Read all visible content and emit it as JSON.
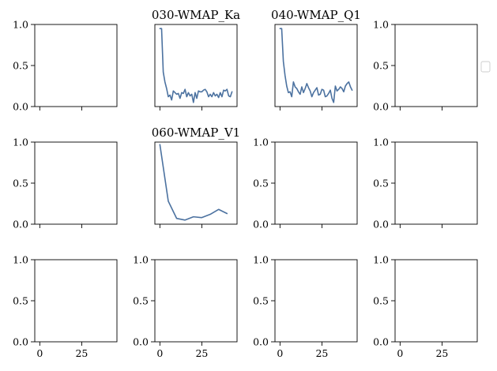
{
  "chart_data": {
    "type": "line",
    "layout": {
      "rows": 3,
      "cols": 4
    },
    "legend": {
      "placement": "right",
      "entries": []
    },
    "colors": {
      "series": "#4c72a0",
      "axes": "#000000",
      "background": "#ffffff"
    },
    "panels": [
      {
        "row": 0,
        "col": 0,
        "title": "",
        "xlim": [
          -3,
          46
        ],
        "ylim": [
          0,
          1
        ],
        "show_y_ticks": true,
        "show_x_tick_labels": false,
        "series": []
      },
      {
        "row": 0,
        "col": 1,
        "title": "030-WMAP_Ka",
        "xlim": [
          -3,
          46
        ],
        "ylim": [
          0,
          1
        ],
        "show_y_ticks": false,
        "show_x_tick_labels": false,
        "series": [
          {
            "x": [
              0,
              1,
              2,
              3,
              4,
              5,
              6,
              7,
              8,
              9,
              10,
              11,
              12,
              13,
              14,
              15,
              16,
              17,
              18,
              19,
              20,
              21,
              22,
              23,
              24,
              25,
              26,
              27,
              28,
              29,
              30,
              31,
              32,
              33,
              34,
              35,
              36,
              37,
              38,
              39,
              40,
              41,
              42,
              43
            ],
            "y": [
              0.95,
              0.95,
              0.42,
              0.3,
              0.22,
              0.12,
              0.14,
              0.08,
              0.19,
              0.17,
              0.15,
              0.16,
              0.1,
              0.17,
              0.16,
              0.21,
              0.12,
              0.17,
              0.13,
              0.15,
              0.05,
              0.17,
              0.1,
              0.19,
              0.18,
              0.18,
              0.2,
              0.21,
              0.18,
              0.12,
              0.15,
              0.12,
              0.17,
              0.13,
              0.15,
              0.11,
              0.17,
              0.12,
              0.2,
              0.19,
              0.21,
              0.13,
              0.12,
              0.18
            ]
          }
        ]
      },
      {
        "row": 0,
        "col": 2,
        "title": "040-WMAP_Q1",
        "xlim": [
          -3,
          46
        ],
        "ylim": [
          0,
          1
        ],
        "show_y_ticks": false,
        "show_x_tick_labels": false,
        "series": [
          {
            "x": [
              0,
              1,
              2,
              3,
              4,
              5,
              6,
              7,
              8,
              9,
              10,
              11,
              12,
              13,
              14,
              15,
              16,
              17,
              18,
              19,
              20,
              21,
              22,
              23,
              24,
              25,
              26,
              27,
              28,
              29,
              30,
              31,
              32,
              33,
              34,
              35,
              36,
              37,
              38,
              39,
              40,
              41,
              42,
              43
            ],
            "y": [
              0.95,
              0.95,
              0.55,
              0.38,
              0.25,
              0.17,
              0.18,
              0.12,
              0.3,
              0.24,
              0.22,
              0.18,
              0.15,
              0.24,
              0.17,
              0.22,
              0.28,
              0.23,
              0.19,
              0.12,
              0.17,
              0.2,
              0.23,
              0.14,
              0.15,
              0.21,
              0.2,
              0.12,
              0.13,
              0.16,
              0.2,
              0.1,
              0.05,
              0.25,
              0.19,
              0.21,
              0.24,
              0.22,
              0.18,
              0.25,
              0.28,
              0.3,
              0.24,
              0.2
            ]
          }
        ]
      },
      {
        "row": 0,
        "col": 3,
        "title": "",
        "xlim": [
          -3,
          46
        ],
        "ylim": [
          0,
          1
        ],
        "show_y_ticks": true,
        "show_x_tick_labels": false,
        "series": []
      },
      {
        "row": 1,
        "col": 0,
        "title": "",
        "xlim": [
          -3,
          46
        ],
        "ylim": [
          0,
          1
        ],
        "show_y_ticks": true,
        "show_x_tick_labels": false,
        "series": []
      },
      {
        "row": 1,
        "col": 1,
        "title": "060-WMAP_V1",
        "xlim": [
          -3,
          46
        ],
        "ylim": [
          0,
          1
        ],
        "show_y_ticks": false,
        "show_x_tick_labels": false,
        "series": [
          {
            "x": [
              0,
              5,
              10,
              15,
              20,
              25,
              30,
              35,
              40
            ],
            "y": [
              0.97,
              0.28,
              0.07,
              0.05,
              0.09,
              0.08,
              0.12,
              0.18,
              0.13
            ]
          }
        ]
      },
      {
        "row": 1,
        "col": 2,
        "title": "",
        "xlim": [
          -3,
          46
        ],
        "ylim": [
          0,
          1
        ],
        "show_y_ticks": true,
        "show_x_tick_labels": false,
        "series": []
      },
      {
        "row": 1,
        "col": 3,
        "title": "",
        "xlim": [
          -3,
          46
        ],
        "ylim": [
          0,
          1
        ],
        "show_y_ticks": true,
        "show_x_tick_labels": false,
        "series": []
      },
      {
        "row": 2,
        "col": 0,
        "title": "",
        "xlim": [
          -3,
          46
        ],
        "ylim": [
          0,
          1
        ],
        "show_y_ticks": true,
        "show_x_tick_labels": true,
        "series": []
      },
      {
        "row": 2,
        "col": 1,
        "title": "",
        "xlim": [
          -3,
          46
        ],
        "ylim": [
          0,
          1
        ],
        "show_y_ticks": true,
        "show_x_tick_labels": true,
        "series": []
      },
      {
        "row": 2,
        "col": 2,
        "title": "",
        "xlim": [
          -3,
          46
        ],
        "ylim": [
          0,
          1
        ],
        "show_y_ticks": true,
        "show_x_tick_labels": true,
        "series": []
      },
      {
        "row": 2,
        "col": 3,
        "title": "",
        "xlim": [
          -3,
          46
        ],
        "ylim": [
          0,
          1
        ],
        "show_y_ticks": true,
        "show_x_tick_labels": true,
        "series": []
      }
    ],
    "x_ticks": [
      0,
      25
    ],
    "y_ticks": [
      0.0,
      0.5,
      1.0
    ],
    "y_tick_labels": [
      "0.0",
      "0.5",
      "1.0"
    ],
    "x_tick_labels": [
      "0",
      "25"
    ]
  }
}
